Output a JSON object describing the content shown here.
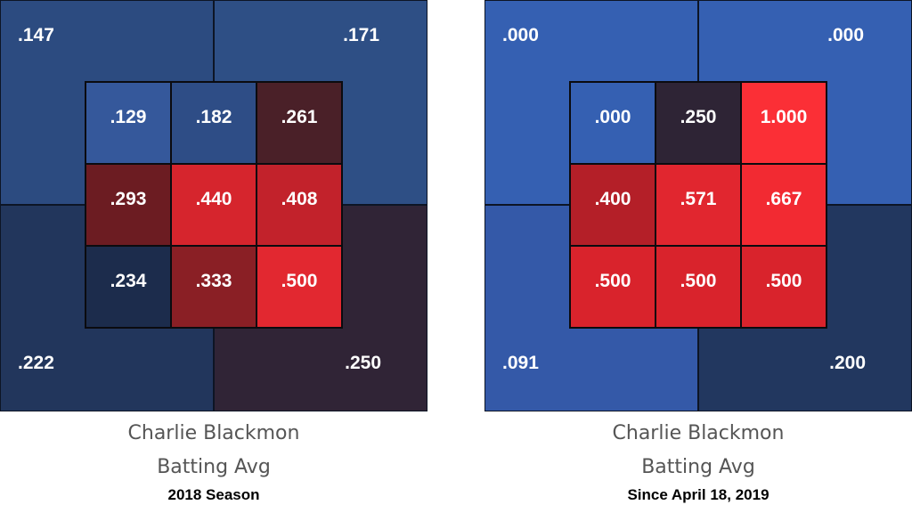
{
  "chart_data": [
    {
      "type": "heatmap",
      "title": "Charlie Blackmon",
      "subtitle": "Batting Avg",
      "period": "2018 Season",
      "outer": {
        "top_left": {
          "label": ".147",
          "color": "#2c4b80"
        },
        "top_right": {
          "label": ".171",
          "color": "#2e4f85"
        },
        "bottom_left": {
          "label": ".222",
          "color": "#22365c"
        },
        "bottom_right": {
          "label": ".250",
          "color": "#302436"
        }
      },
      "inner": [
        [
          {
            "label": ".129",
            "color": "#35589b"
          },
          {
            "label": ".182",
            "color": "#2e4d86"
          },
          {
            "label": ".261",
            "color": "#4a2028"
          }
        ],
        [
          {
            "label": ".293",
            "color": "#6c1c22"
          },
          {
            "label": ".440",
            "color": "#d6252d"
          },
          {
            "label": ".408",
            "color": "#c2222b"
          }
        ],
        [
          {
            "label": ".234",
            "color": "#1c2c4c"
          },
          {
            "label": ".333",
            "color": "#8a1f25"
          },
          {
            "label": ".500",
            "color": "#e22830"
          }
        ]
      ]
    },
    {
      "type": "heatmap",
      "title": "Charlie Blackmon",
      "subtitle": "Batting Avg",
      "period": "Since April 18, 2019",
      "outer": {
        "top_left": {
          "label": ".000",
          "color": "#3560b2"
        },
        "top_right": {
          "label": ".000",
          "color": "#3560b2"
        },
        "bottom_left": {
          "label": ".091",
          "color": "#3459a8"
        },
        "bottom_right": {
          "label": ".200",
          "color": "#22375f"
        }
      },
      "inner": [
        [
          {
            "label": ".000",
            "color": "#3560b2"
          },
          {
            "label": ".250",
            "color": "#2e2435"
          },
          {
            "label": "1.000",
            "color": "#fb2f36"
          }
        ],
        [
          {
            "label": ".400",
            "color": "#b41f28"
          },
          {
            "label": ".571",
            "color": "#e1262f"
          },
          {
            "label": ".667",
            "color": "#f22a32"
          }
        ],
        [
          {
            "label": ".500",
            "color": "#d9232c"
          },
          {
            "label": ".500",
            "color": "#d9232c"
          },
          {
            "label": ".500",
            "color": "#d9232c"
          }
        ]
      ]
    }
  ]
}
